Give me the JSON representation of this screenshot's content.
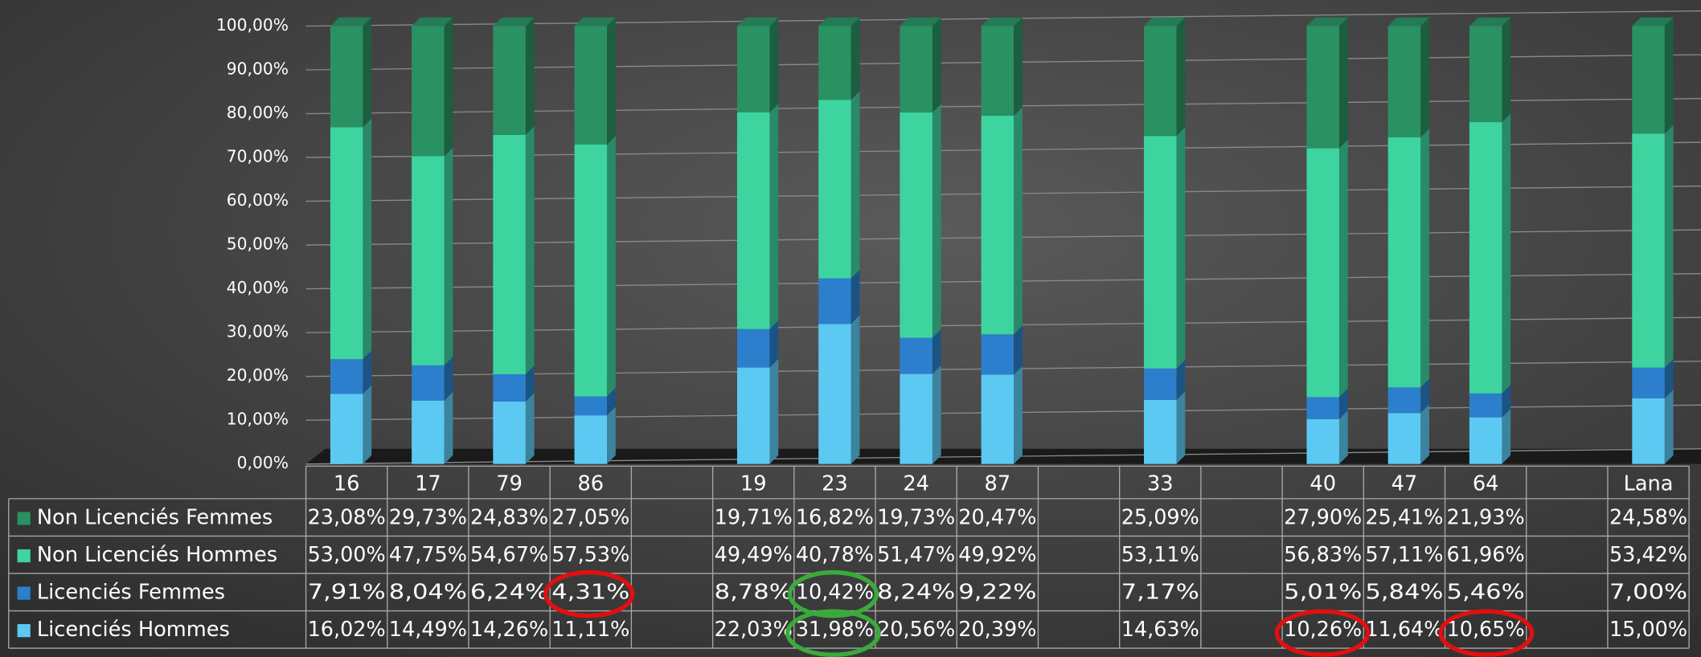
{
  "chart_data": {
    "type": "stacked_bar",
    "categories": [
      "16",
      "17",
      "79",
      "86",
      null,
      "19",
      "23",
      "24",
      "87",
      null,
      "33",
      null,
      "40",
      "47",
      "64",
      null,
      "Lana"
    ],
    "series": [
      {
        "name": "Licenciés Hommes",
        "color": "#5cc9f2",
        "values": [
          16.02,
          14.49,
          14.26,
          11.11,
          null,
          22.03,
          31.98,
          20.56,
          20.39,
          null,
          14.63,
          null,
          10.26,
          11.64,
          10.65,
          null,
          15.0
        ],
        "value_labels": [
          "16,02%",
          "14,49%",
          "14,26%",
          "11,11%",
          null,
          "22,03%",
          "31,98%",
          "20,56%",
          "20,39%",
          null,
          "14,63%",
          null,
          "10,26%",
          "11,64%",
          "10,65%",
          null,
          "15,00%"
        ]
      },
      {
        "name": "Licenciés Femmes",
        "color": "#2b7fcc",
        "values": [
          7.91,
          8.04,
          6.24,
          4.31,
          null,
          8.78,
          10.42,
          8.24,
          9.22,
          null,
          7.17,
          null,
          5.01,
          5.84,
          5.46,
          null,
          7.0
        ],
        "value_labels": [
          "7,91%",
          "8,04%",
          "6,24%",
          "4,31%",
          null,
          "8,78%",
          "10,42%",
          "8,24%",
          "9,22%",
          null,
          "7,17%",
          null,
          "5,01%",
          "5,84%",
          "5,46%",
          null,
          "7,00%"
        ]
      },
      {
        "name": "Non Licenciés Hommes",
        "color": "#3dd4a0",
        "values": [
          53.0,
          47.75,
          54.67,
          57.53,
          null,
          49.49,
          40.78,
          51.47,
          49.92,
          null,
          53.11,
          null,
          56.83,
          57.11,
          61.96,
          null,
          53.42
        ],
        "value_labels": [
          "53,00%",
          "47,75%",
          "54,67%",
          "57,53%",
          null,
          "49,49%",
          "40,78%",
          "51,47%",
          "49,92%",
          null,
          "53,11%",
          null,
          "56,83%",
          "57,11%",
          "61,96%",
          null,
          "53,42%"
        ]
      },
      {
        "name": "Non Licenciés Femmes",
        "color": "#2a9163",
        "values": [
          23.08,
          29.73,
          24.83,
          27.05,
          null,
          19.71,
          16.82,
          19.73,
          20.47,
          null,
          25.09,
          null,
          27.9,
          25.41,
          21.93,
          null,
          24.58
        ],
        "value_labels": [
          "23,08%",
          "29,73%",
          "24,83%",
          "27,05%",
          null,
          "19,71%",
          "16,82%",
          "19,73%",
          "20,47%",
          null,
          "25,09%",
          null,
          "27,90%",
          "25,41%",
          "21,93%",
          null,
          "24,58%"
        ]
      }
    ],
    "ylim": [
      0,
      100
    ],
    "yticks": [
      {
        "value": 0,
        "label": "0,00%"
      },
      {
        "value": 10,
        "label": "10,00%"
      },
      {
        "value": 20,
        "label": "20,00%"
      },
      {
        "value": 30,
        "label": "30,00%"
      },
      {
        "value": 40,
        "label": "40,00%"
      },
      {
        "value": 50,
        "label": "50,00%"
      },
      {
        "value": 60,
        "label": "60,00%"
      },
      {
        "value": 70,
        "label": "70,00%"
      },
      {
        "value": 80,
        "label": "80,00%"
      },
      {
        "value": 90,
        "label": "90,00%"
      },
      {
        "value": 100,
        "label": "100,00%"
      }
    ],
    "grid": true
  }
}
